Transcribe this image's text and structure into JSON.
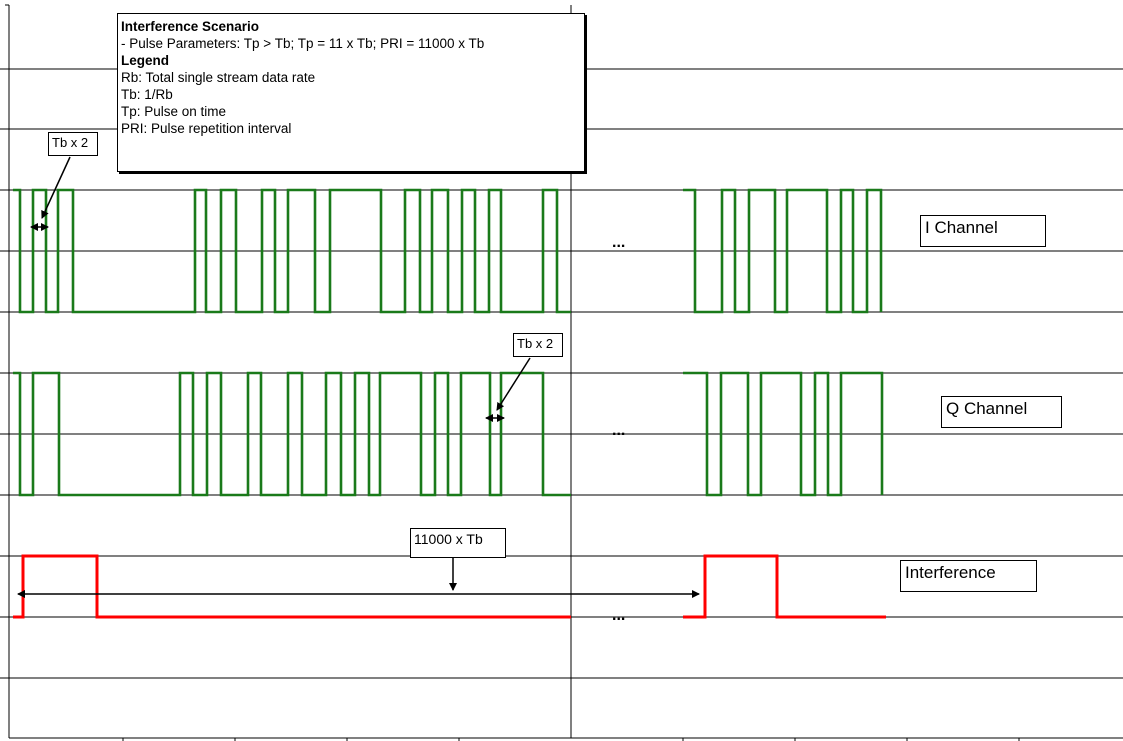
{
  "legend": {
    "title": "Interference Scenario",
    "params": "- Pulse Parameters: Tp > Tb;  Tp = 11 x Tb;  PRI = 11000 x Tb",
    "legend_title": "Legend",
    "items": [
      "Rb: Total single stream data rate",
      "Tb: 1/Rb",
      "Tp: Pulse on time",
      "PRI: Pulse repetition interval"
    ]
  },
  "channels": {
    "i_label": "I Channel",
    "q_label": "Q Channel",
    "interference_label": "Interference"
  },
  "annotations": {
    "tb_left": "Tb x 2",
    "tb_q": "Tb x 2",
    "pri": "11000 x Tb",
    "ellipsis": "..."
  },
  "colors": {
    "data_wave": "#1a7a1a",
    "interference_wave": "#ff0000",
    "grid": "#000000"
  }
}
